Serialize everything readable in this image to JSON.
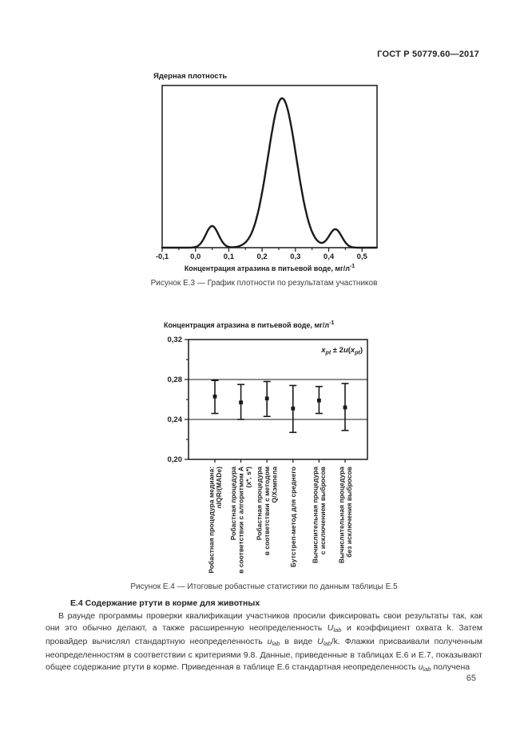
{
  "page": {
    "header": "ГОСТ Р 50779.60—2017",
    "number": "65"
  },
  "figures": {
    "e3_caption": "Рисунок Е.3 — График плотности по результатам участников",
    "e4_caption": "Рисунок Е.4 — Итоговые робастные статистики по данным таблицы Е.5"
  },
  "section": {
    "heading": "Е.4 Содержание ртути в корме для животных",
    "paragraph_segments": [
      {
        "t": "В раунде программы проверки квалификации участников просили фиксировать свои результаты так, как они это обычно делают, а также расширенную неопределенность "
      },
      {
        "i": "U"
      },
      {
        "sub": "lab"
      },
      {
        "t": " и коэффициент охвата k. Затем провайдер вычислял стандартную неопределенность "
      },
      {
        "i": "u"
      },
      {
        "sub": "lab"
      },
      {
        "t": " в виде "
      },
      {
        "i": "U"
      },
      {
        "sub": "lab"
      },
      {
        "t": "/k. Флажки присваивали полученным неопределенностям в соответствии с критериями 9.8. Данные, приведенные в таблицах Е.6 и Е.7, показывают общее содержание ртути в корме. Приведенная в таблице Е.6 стандартная неопределенность "
      },
      {
        "i": "u"
      },
      {
        "sub": "lab"
      },
      {
        "t": " получена"
      }
    ]
  },
  "chart_data": [
    {
      "id": "figure-e3",
      "type": "line",
      "title": "Ядерная плотность",
      "xlabel": "Концентрация атразина в питьевой воде, мг/л^-1",
      "xlabel_segments": [
        {
          "t": "Концентрация атразина в питьевой воде, мг/л"
        },
        {
          "sup": "-1"
        }
      ],
      "xlim": [
        -0.1,
        0.545
      ],
      "ylim": [
        0,
        1.085
      ],
      "x_ticks": [
        -0.1,
        0.0,
        0.1,
        0.2,
        0.3,
        0.4,
        0.5
      ],
      "x_tick_labels": [
        "-0,1",
        "0,0",
        "0,1",
        "0,2",
        "0,3",
        "0,4",
        "0,5"
      ],
      "minor_tick_offset": 0.05,
      "grid": false,
      "peaks": [
        {
          "center": 0.05,
          "height": 0.145,
          "sigma": 0.019
        },
        {
          "center": 0.26,
          "height": 1.0,
          "sigma": 0.0425
        },
        {
          "center": 0.42,
          "height": 0.123,
          "sigma": 0.019
        }
      ]
    },
    {
      "id": "figure-e4",
      "type": "scatter",
      "title": "Концентрация атразина в питьевой воде, мг/л^-1",
      "title_segments": [
        {
          "t": "Концентрация атразина в питьевой воде, мг/л"
        },
        {
          "sup": "-1"
        }
      ],
      "legend": "x_pt ± 2u(x_pt)",
      "legend_segments": [
        {
          "i": "x"
        },
        {
          "sub": "pt"
        },
        {
          "t": " ± 2"
        },
        {
          "i": "u"
        },
        {
          "t": "("
        },
        {
          "i": "x"
        },
        {
          "sub": "pt"
        },
        {
          "t": ")"
        }
      ],
      "legend_position": "top-right",
      "ylim": [
        0.2,
        0.32
      ],
      "y_ticks": [
        0.2,
        0.24,
        0.28,
        0.32
      ],
      "y_tick_labels": [
        "0,20",
        "0,24",
        "0,28",
        "0,32"
      ],
      "y_minor_ticks": [
        0.22,
        0.26,
        0.3
      ],
      "gridlines": [
        0.24,
        0.28
      ],
      "categories": [
        {
          "lines": [
            "Робастная процедура медиана:",
            "nIQR/(MADe)"
          ]
        },
        {
          "lines": [
            "Робастная процедура",
            "в соответствии с алгоритмом А",
            "(x*, s*)"
          ]
        },
        {
          "lines": [
            "Робастная процедура",
            "в соответствии с методом",
            "Q/Хэмпела"
          ]
        },
        {
          "lines": [
            "Бутстреп-метод для среднего"
          ]
        },
        {
          "lines": [
            "Вычислительная процедура",
            "с исключением выбросов"
          ]
        },
        {
          "lines": [
            "Вычислительная процедура",
            "без исключения выбросов"
          ]
        }
      ],
      "points": [
        {
          "value": 0.263,
          "low": 0.246,
          "high": 0.279
        },
        {
          "value": 0.257,
          "low": 0.24,
          "high": 0.275
        },
        {
          "value": 0.261,
          "low": 0.243,
          "high": 0.278
        },
        {
          "value": 0.251,
          "low": 0.227,
          "high": 0.274
        },
        {
          "value": 0.259,
          "low": 0.246,
          "high": 0.273
        },
        {
          "value": 0.252,
          "low": 0.229,
          "high": 0.276
        }
      ]
    }
  ]
}
